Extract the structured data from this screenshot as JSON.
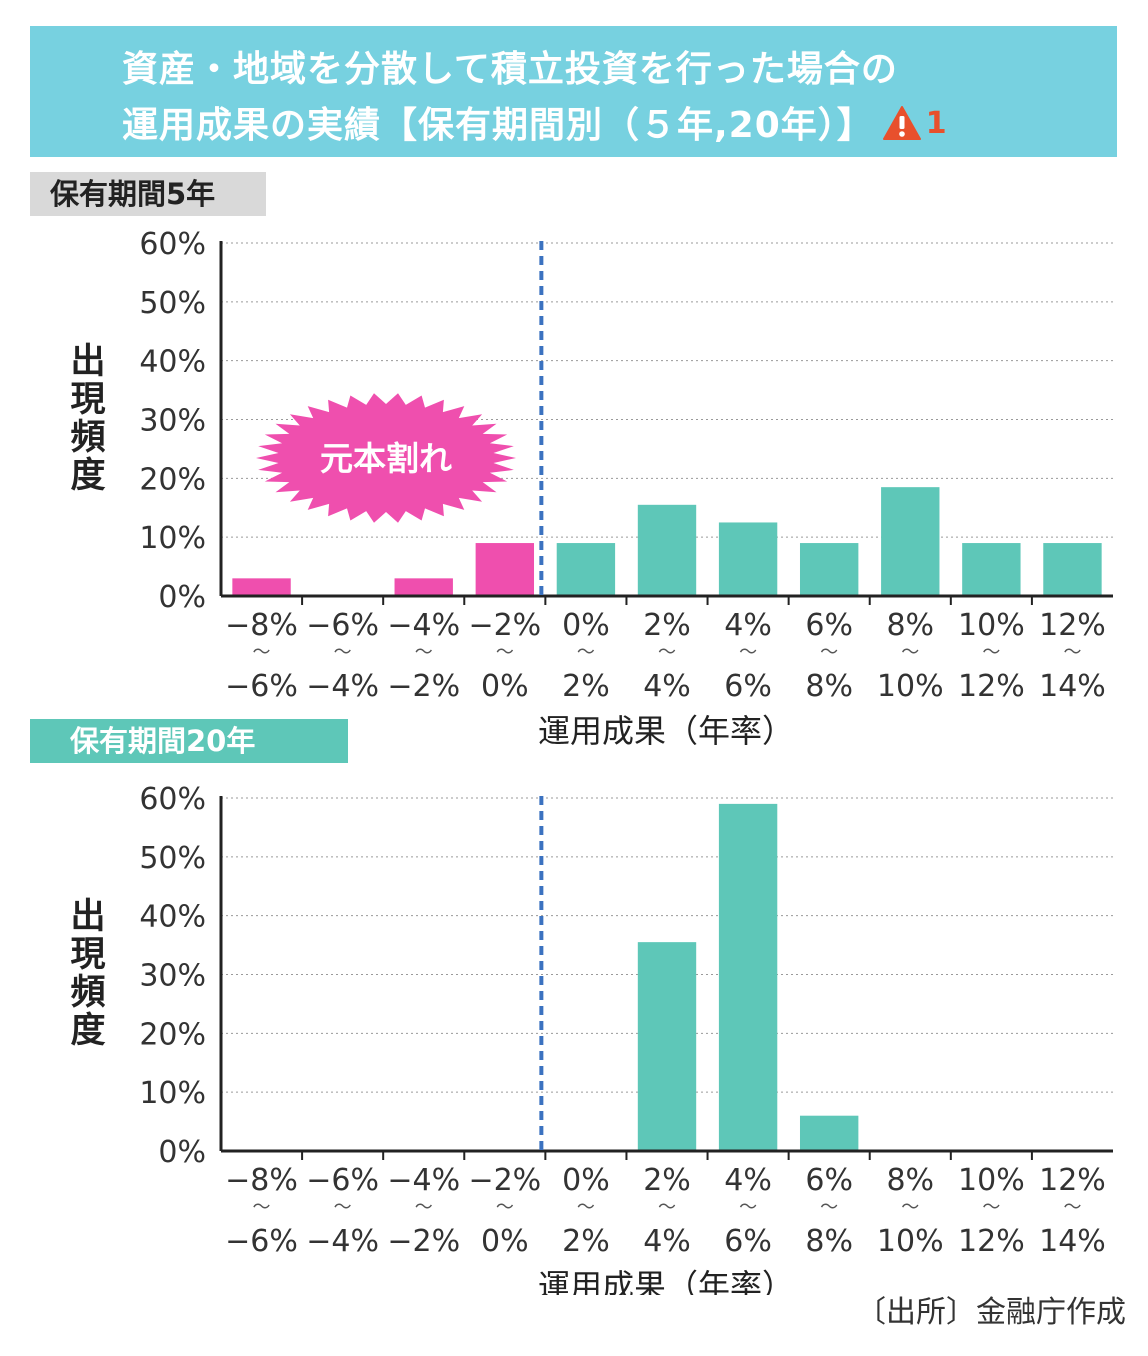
{
  "banner": {
    "line1": "資産・地域を分散して積立投資を行った場合の",
    "line2": "運用成果の実績【保有期間別（５年,20年）】",
    "warning_icon": "warning-triangle-icon",
    "warning_number": "1"
  },
  "source": "〔出所〕金融庁作成",
  "colors": {
    "banner": "#77d1e0",
    "loss": "#ef4fae",
    "gain": "#5ec7b8",
    "divider": "#3b72c0",
    "warning": "#e8502c"
  },
  "chart_data": [
    {
      "type": "bar",
      "panel_label": "保有期間5年",
      "categories": [
        [
          "−8%",
          "〜",
          "−6%"
        ],
        [
          "−6%",
          "〜",
          "−4%"
        ],
        [
          "−4%",
          "〜",
          "−2%"
        ],
        [
          "−2%",
          "〜",
          "0%"
        ],
        [
          "0%",
          "〜",
          "2%"
        ],
        [
          "2%",
          "〜",
          "4%"
        ],
        [
          "4%",
          "〜",
          "6%"
        ],
        [
          "6%",
          "〜",
          "8%"
        ],
        [
          "8%",
          "〜",
          "10%"
        ],
        [
          "10%",
          "〜",
          "12%"
        ],
        [
          "12%",
          "〜",
          "14%"
        ]
      ],
      "values": [
        3,
        0,
        3,
        9,
        9,
        15.5,
        12.5,
        9,
        18.5,
        9,
        9
      ],
      "ylim": [
        0,
        60
      ],
      "yticks": [
        "0%",
        "10%",
        "20%",
        "30%",
        "40%",
        "50%",
        "60%"
      ],
      "ylabel": "出現頻度",
      "xlabel": "運用成果（年率）",
      "divider_after_category": 3,
      "annotation": "元本割れ",
      "grid": true
    },
    {
      "type": "bar",
      "panel_label": "保有期間20年",
      "categories": [
        [
          "−8%",
          "〜",
          "−6%"
        ],
        [
          "−6%",
          "〜",
          "−4%"
        ],
        [
          "−4%",
          "〜",
          "−2%"
        ],
        [
          "−2%",
          "〜",
          "0%"
        ],
        [
          "0%",
          "〜",
          "2%"
        ],
        [
          "2%",
          "〜",
          "4%"
        ],
        [
          "4%",
          "〜",
          "6%"
        ],
        [
          "6%",
          "〜",
          "8%"
        ],
        [
          "8%",
          "〜",
          "10%"
        ],
        [
          "10%",
          "〜",
          "12%"
        ],
        [
          "12%",
          "〜",
          "14%"
        ]
      ],
      "values": [
        0,
        0,
        0,
        0,
        0,
        35.5,
        59,
        6,
        0,
        0,
        0
      ],
      "ylim": [
        0,
        60
      ],
      "yticks": [
        "0%",
        "10%",
        "20%",
        "30%",
        "40%",
        "50%",
        "60%"
      ],
      "ylabel": "出現頻度",
      "xlabel": "運用成果（年率）",
      "divider_after_category": 3,
      "grid": true
    }
  ]
}
